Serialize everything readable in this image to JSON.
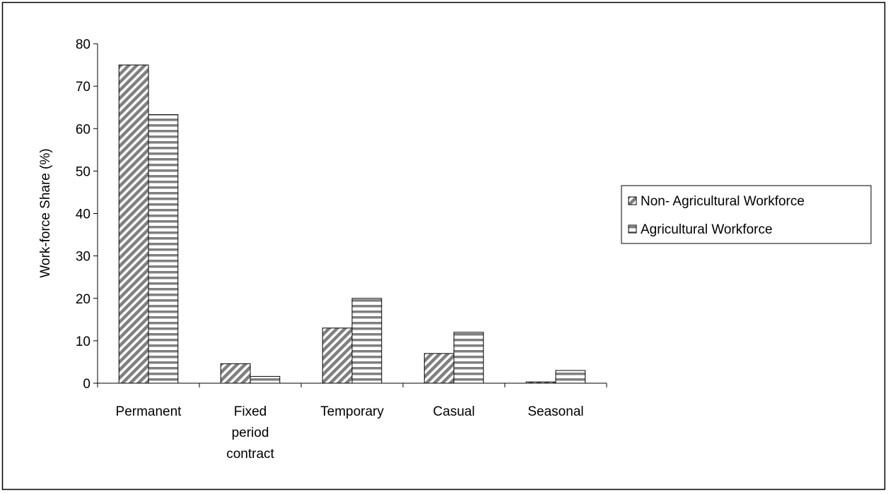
{
  "chart_data": {
    "type": "bar",
    "y_label": "Work-force Share (%)",
    "categories": [
      "Permanent",
      "Fixed period contract",
      "Temporary",
      "Casual",
      "Seasonal"
    ],
    "series": [
      {
        "name": "Non- Agricultural Workforce",
        "color": "#808080",
        "pattern": "diagonal",
        "values": [
          75,
          4.6,
          13,
          7,
          0.3
        ]
      },
      {
        "name": "Agricultural Workforce",
        "color": "#808080",
        "pattern": "horizontal",
        "values": [
          63.3,
          1.6,
          20,
          12,
          3
        ]
      }
    ],
    "ylim": [
      0,
      80
    ],
    "yticks": [
      0,
      10,
      20,
      30,
      40,
      50,
      60,
      70,
      80
    ],
    "grid": false,
    "legend": "right"
  }
}
